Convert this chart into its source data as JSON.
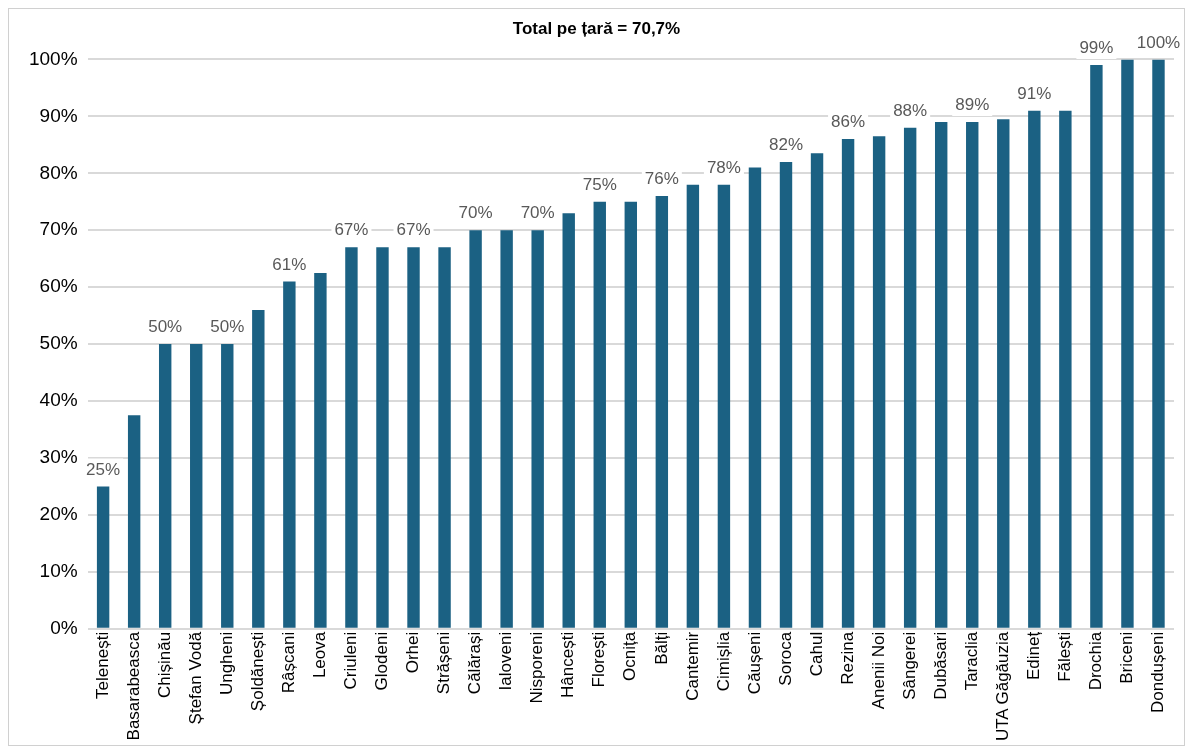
{
  "chart_data": {
    "type": "bar",
    "title": "Total pe țară = 70,7%",
    "categories": [
      "Telenești",
      "Basarabeasca",
      "Chișinău",
      "Ștefan Vodă",
      "Ungheni",
      "Șoldănești",
      "Râșcani",
      "Leova",
      "Criuleni",
      "Glodeni",
      "Orhei",
      "Strășeni",
      "Călărași",
      "Ialoveni",
      "Nisporeni",
      "Hâncești",
      "Florești",
      "Ocnița",
      "Bălți",
      "Cantemir",
      "Cimișlia",
      "Căușeni",
      "Soroca",
      "Cahul",
      "Rezina",
      "Anenii Noi",
      "Sângerei",
      "Dubăsari",
      "Taraclia",
      "UTA Găgăuzia",
      "Edineț",
      "Fălești",
      "Drochia",
      "Briceni",
      "Dondușeni"
    ],
    "values": [
      25,
      37.5,
      50,
      50,
      50,
      56,
      61,
      62.5,
      67,
      67,
      67,
      67,
      70,
      70,
      70,
      73,
      75,
      75,
      76,
      78,
      78,
      81,
      82,
      83.5,
      86,
      86.5,
      88,
      89,
      89,
      89.5,
      91,
      91,
      99,
      100,
      100
    ],
    "value_labels": [
      "25%",
      null,
      "50%",
      null,
      "50%",
      null,
      "61%",
      null,
      "67%",
      null,
      "67%",
      null,
      "70%",
      null,
      "70%",
      null,
      "75%",
      null,
      "76%",
      null,
      "78%",
      null,
      "82%",
      null,
      "86%",
      null,
      "88%",
      null,
      "89%",
      null,
      "91%",
      null,
      "99%",
      null,
      "100%"
    ],
    "color": "#1b6183",
    "ylim": [
      0,
      100
    ],
    "yticks": [
      {
        "value": 0,
        "label": "0%"
      },
      {
        "value": 10,
        "label": "10%"
      },
      {
        "value": 20,
        "label": "20%"
      },
      {
        "value": 30,
        "label": "30%"
      },
      {
        "value": 40,
        "label": "40%"
      },
      {
        "value": 50,
        "label": "50%"
      },
      {
        "value": 60,
        "label": "60%"
      },
      {
        "value": 70,
        "label": "70%"
      },
      {
        "value": 80,
        "label": "80%"
      },
      {
        "value": 90,
        "label": "90%"
      },
      {
        "value": 100,
        "label": "100%"
      }
    ],
    "grid": "y",
    "legend": false
  }
}
